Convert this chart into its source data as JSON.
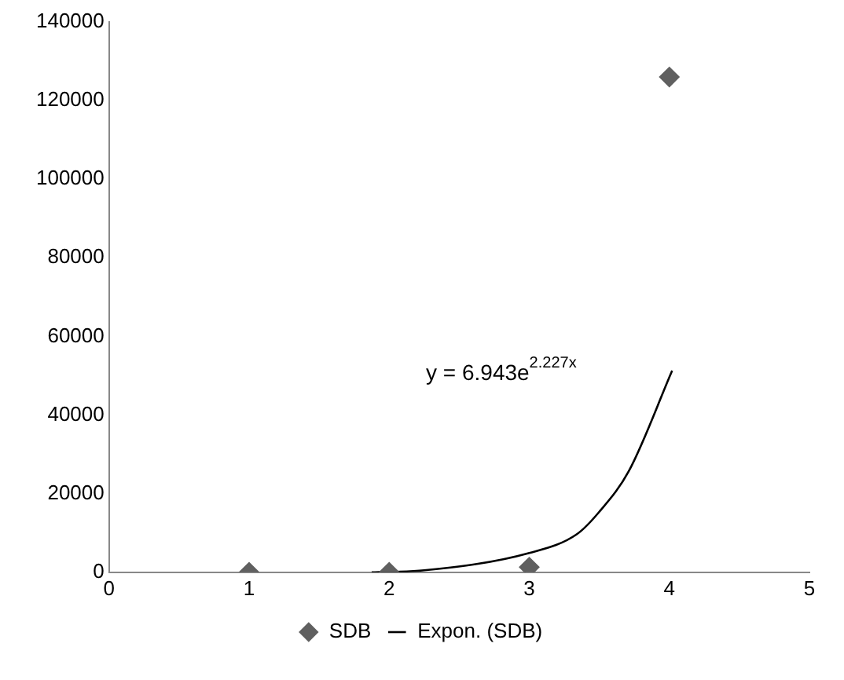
{
  "chart_data": {
    "type": "scatter",
    "xlim": [
      0,
      5
    ],
    "xticks": [
      0,
      1,
      2,
      3,
      4,
      5
    ],
    "ylim": [
      0,
      140000
    ],
    "yticks": [
      0,
      20000,
      40000,
      60000,
      80000,
      100000,
      120000,
      140000
    ],
    "grid": false,
    "legend": "bottom",
    "marker": "diamond",
    "series": [
      {
        "name": "SDB",
        "color": "#606060",
        "x": [
          1,
          2,
          3,
          4
        ],
        "values": [
          0,
          0,
          1300,
          126000
        ]
      },
      {
        "name": "Expon. (SDB)",
        "type": "line",
        "color": "#000000",
        "marker": "none",
        "line_style": "solid",
        "x": [
          1.875,
          2.25,
          3.0,
          3.34,
          3.5,
          3.71,
          4.02
        ],
        "values": [
          0,
          500,
          4900,
          9700,
          15400,
          25700,
          51300
        ]
      }
    ],
    "annotations": [
      "y = 6.943e$^{2.227x}$"
    ]
  }
}
